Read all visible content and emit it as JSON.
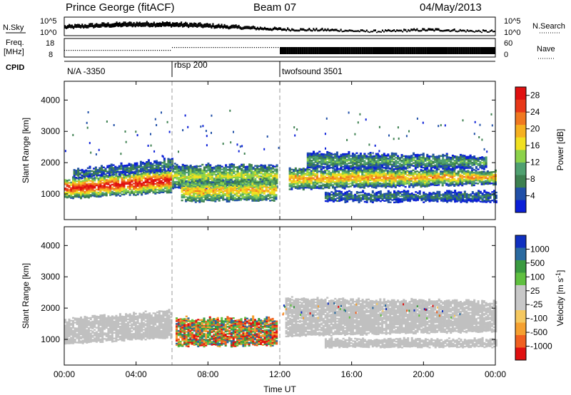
{
  "header": {
    "station": "Prince George (fitACF)",
    "beam": "Beam 07",
    "date": "04/May/2013"
  },
  "summary_panels": {
    "nsky_label": "N.Sky",
    "nsearch_label": "N.Search",
    "nsky_ticks": [
      "10^5",
      "10^0"
    ],
    "freq_label_line1": "Freq.",
    "freq_label_line2": "[MHz]",
    "freq_ticks": [
      "18",
      "8"
    ],
    "nave_label": "Nave",
    "nave_ticks": [
      "60",
      "0"
    ],
    "cpid_label": "CPID",
    "cpid_segments": [
      {
        "label": "N/A -3350",
        "start_hour": 0
      },
      {
        "label": "rbsp 200",
        "start_hour": 6
      },
      {
        "label": "twofsound 3501",
        "start_hour": 12
      }
    ]
  },
  "colors": {
    "power": [
      "#0b1fd8",
      "#2150a8",
      "#3d8050",
      "#4fa070",
      "#8cd24a",
      "#f0e020",
      "#f5b020",
      "#f07820",
      "#e83818",
      "#e01010"
    ],
    "velocity": [
      "#e01010",
      "#f06020",
      "#f5a030",
      "#f5c860",
      "#c8c8c8",
      "#c8c8c8",
      "#60c040",
      "#3a9a40",
      "#2a6aa0",
      "#1030c0"
    ],
    "ground_scatter": "#c0c0c0"
  },
  "chart_data": [
    {
      "type": "heatmap",
      "name": "power",
      "ylabel": "Slant Range [km]",
      "xlabel": "Time UT",
      "xlim": [
        0,
        24
      ],
      "ylim": [
        180,
        4600
      ],
      "xticks": [
        "00:00",
        "04:00",
        "08:00",
        "12:00",
        "16:00",
        "20:00",
        "00:00"
      ],
      "yticks": [
        1000,
        2000,
        3000,
        4000
      ],
      "colorbar": {
        "label": "Power [dB]",
        "ticks": [
          4,
          8,
          12,
          16,
          20,
          24,
          28
        ],
        "range": [
          0,
          30
        ]
      },
      "bands": [
        {
          "t0": 0.0,
          "t1": 5.9,
          "r0a": 850,
          "r1a": 1450,
          "r0b": 1050,
          "r1b": 1800,
          "vmax": 30,
          "vmin": 6
        },
        {
          "t0": 0.5,
          "t1": 6.0,
          "r0a": 1500,
          "r1a": 1750,
          "r0b": 1750,
          "r1b": 2100,
          "vmax": 8,
          "vmin": 2
        },
        {
          "t0": 6.0,
          "t1": 11.8,
          "r0a": 1150,
          "r1a": 1900,
          "r0b": 1200,
          "r1b": 1900,
          "vmax": 16,
          "vmin": 4
        },
        {
          "t0": 6.5,
          "t1": 11.8,
          "r0a": 750,
          "r1a": 1400,
          "r0b": 800,
          "r1b": 1450,
          "vmax": 20,
          "vmin": 6
        },
        {
          "t0": 12.5,
          "t1": 24.0,
          "r0a": 1150,
          "r1a": 1800,
          "r0b": 1300,
          "r1b": 1750,
          "vmax": 22,
          "vmin": 4
        },
        {
          "t0": 14.5,
          "t1": 24.0,
          "r0a": 750,
          "r1a": 1050,
          "r0b": 750,
          "r1b": 1050,
          "vmax": 8,
          "vmin": 2
        },
        {
          "t0": 13.5,
          "t1": 23.5,
          "r0a": 1800,
          "r1a": 2300,
          "r0b": 1800,
          "r1b": 2200,
          "vmax": 12,
          "vmin": 2
        }
      ]
    },
    {
      "type": "heatmap",
      "name": "velocity",
      "ylabel": "Slant Range [km]",
      "xlabel": "Time UT",
      "xlim": [
        0,
        24
      ],
      "ylim": [
        180,
        4600
      ],
      "xticks": [
        "00:00",
        "04:00",
        "08:00",
        "12:00",
        "16:00",
        "20:00",
        "00:00"
      ],
      "yticks": [
        1000,
        2000,
        3000,
        4000
      ],
      "colorbar": {
        "label": "Velocity [m s^-1]",
        "ticks": [
          "1000",
          "500",
          "100",
          "25",
          "-25",
          "-100",
          "-500",
          "-1000"
        ]
      },
      "ground_scatter_regions": [
        {
          "t0": 0.0,
          "t1": 5.9,
          "r0a": 850,
          "r1a": 1650,
          "r0b": 1050,
          "r1b": 1900
        },
        {
          "t0": 12.3,
          "t1": 24.0,
          "r0a": 1100,
          "r1a": 2300,
          "r0b": 1250,
          "r1b": 2200
        },
        {
          "t0": 14.5,
          "t1": 24.0,
          "r0a": 750,
          "r1a": 1000,
          "r0b": 750,
          "r1b": 1000
        }
      ],
      "ionospheric_region": {
        "t0": 6.2,
        "t1": 11.8,
        "r0": 800,
        "r1": 1650,
        "main_velocity_range": [
          -500,
          300
        ]
      }
    }
  ]
}
